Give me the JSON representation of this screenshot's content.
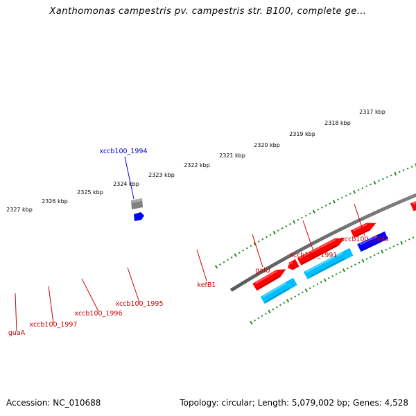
{
  "title": "Xanthomonas campestris pv. campestris str. B100, complete ge...",
  "footer": {
    "accession": "Accession: NC_010688",
    "stats": "Topology: circular; Length: 5,079,002 bp; Genes: 4,528"
  },
  "colors": {
    "forward_cds": "#ff0000",
    "reverse_cds": "#00bfff",
    "highlight_forward": "#0000ff",
    "highlight_gene": "#808080",
    "kefB1": "#483d8b",
    "galU": "#6b8e23",
    "backbone": "#808080",
    "ticks": "#228b22",
    "label_default": "#cc0000",
    "label_selected": "#0000cc"
  },
  "kbp_labels": [
    "2327 kbp",
    "2326 kbp",
    "2325 kbp",
    "2324 kbp",
    "2323 kbp",
    "2322 kbp",
    "2321 kbp",
    "2320 kbp",
    "2319 kbp",
    "2318 kbp",
    "2317 kbp"
  ],
  "gene_labels": [
    "xccb100_1994",
    "guaA",
    "xccb100_1997",
    "xccb100_1996",
    "xccb100_1995",
    "kefB1",
    "galU",
    "xccb100_1991",
    "xccb100_1990"
  ]
}
